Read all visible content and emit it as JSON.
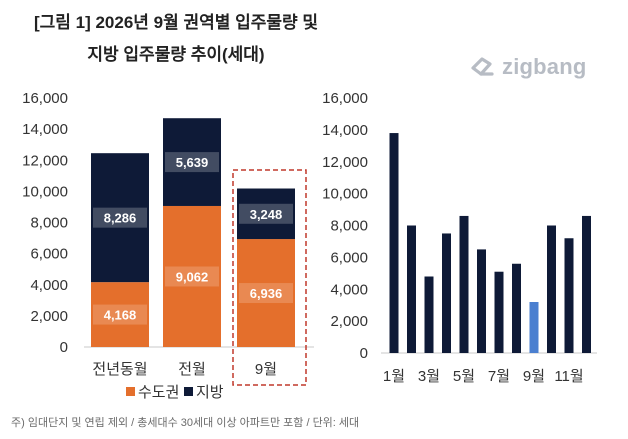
{
  "title": {
    "line1": "[그림 1] 2026년 9월 권역별 입주물량 및",
    "line2": "지방 입주물량 추이(세대)"
  },
  "brand": {
    "name": "zigbang"
  },
  "colors": {
    "capital": "#e46f2c",
    "region": "#0e1a37",
    "highlight": "#4a7fd0",
    "highlight_box": "#c0392b"
  },
  "chart_data": [
    {
      "type": "bar",
      "stacked": true,
      "categories": [
        "전년동월",
        "전월",
        "9월"
      ],
      "series": [
        {
          "name": "수도권",
          "values": [
            4168,
            9062,
            6936
          ]
        },
        {
          "name": "지방",
          "values": [
            8286,
            5639,
            3248
          ]
        }
      ],
      "data_labels": [
        [
          "4,168",
          "9,062",
          "6,936"
        ],
        [
          "8,286",
          "5,639",
          "3,248"
        ]
      ],
      "yticks": [
        "0",
        "2,000",
        "4,000",
        "6,000",
        "8,000",
        "10,000",
        "12,000",
        "14,000",
        "16,000"
      ],
      "ylim": [
        0,
        16000
      ],
      "grid": false,
      "legend": "bottom",
      "highlighted_category": "9월"
    },
    {
      "type": "bar",
      "categories": [
        "1월",
        "2월",
        "3월",
        "4월",
        "5월",
        "6월",
        "7월",
        "8월",
        "9월",
        "10월",
        "11월",
        "12월"
      ],
      "xtick_labels": [
        "1월",
        "",
        "3월",
        "",
        "5월",
        "",
        "7월",
        "",
        "9월",
        "",
        "11월",
        ""
      ],
      "values": [
        13800,
        8000,
        4800,
        7500,
        8600,
        6500,
        5100,
        5600,
        3200,
        8000,
        7200,
        8600
      ],
      "highlighted_category": "9월",
      "yticks": [
        "0",
        "2,000",
        "4,000",
        "6,000",
        "8,000",
        "10,000",
        "12,000",
        "14,000",
        "16,000"
      ],
      "ylim": [
        0,
        16000
      ],
      "grid": false
    }
  ],
  "footnote": "주) 임대단지 및 연립 제외 / 총세대수 30세대 이상 아파트만 포함 / 단위: 세대"
}
